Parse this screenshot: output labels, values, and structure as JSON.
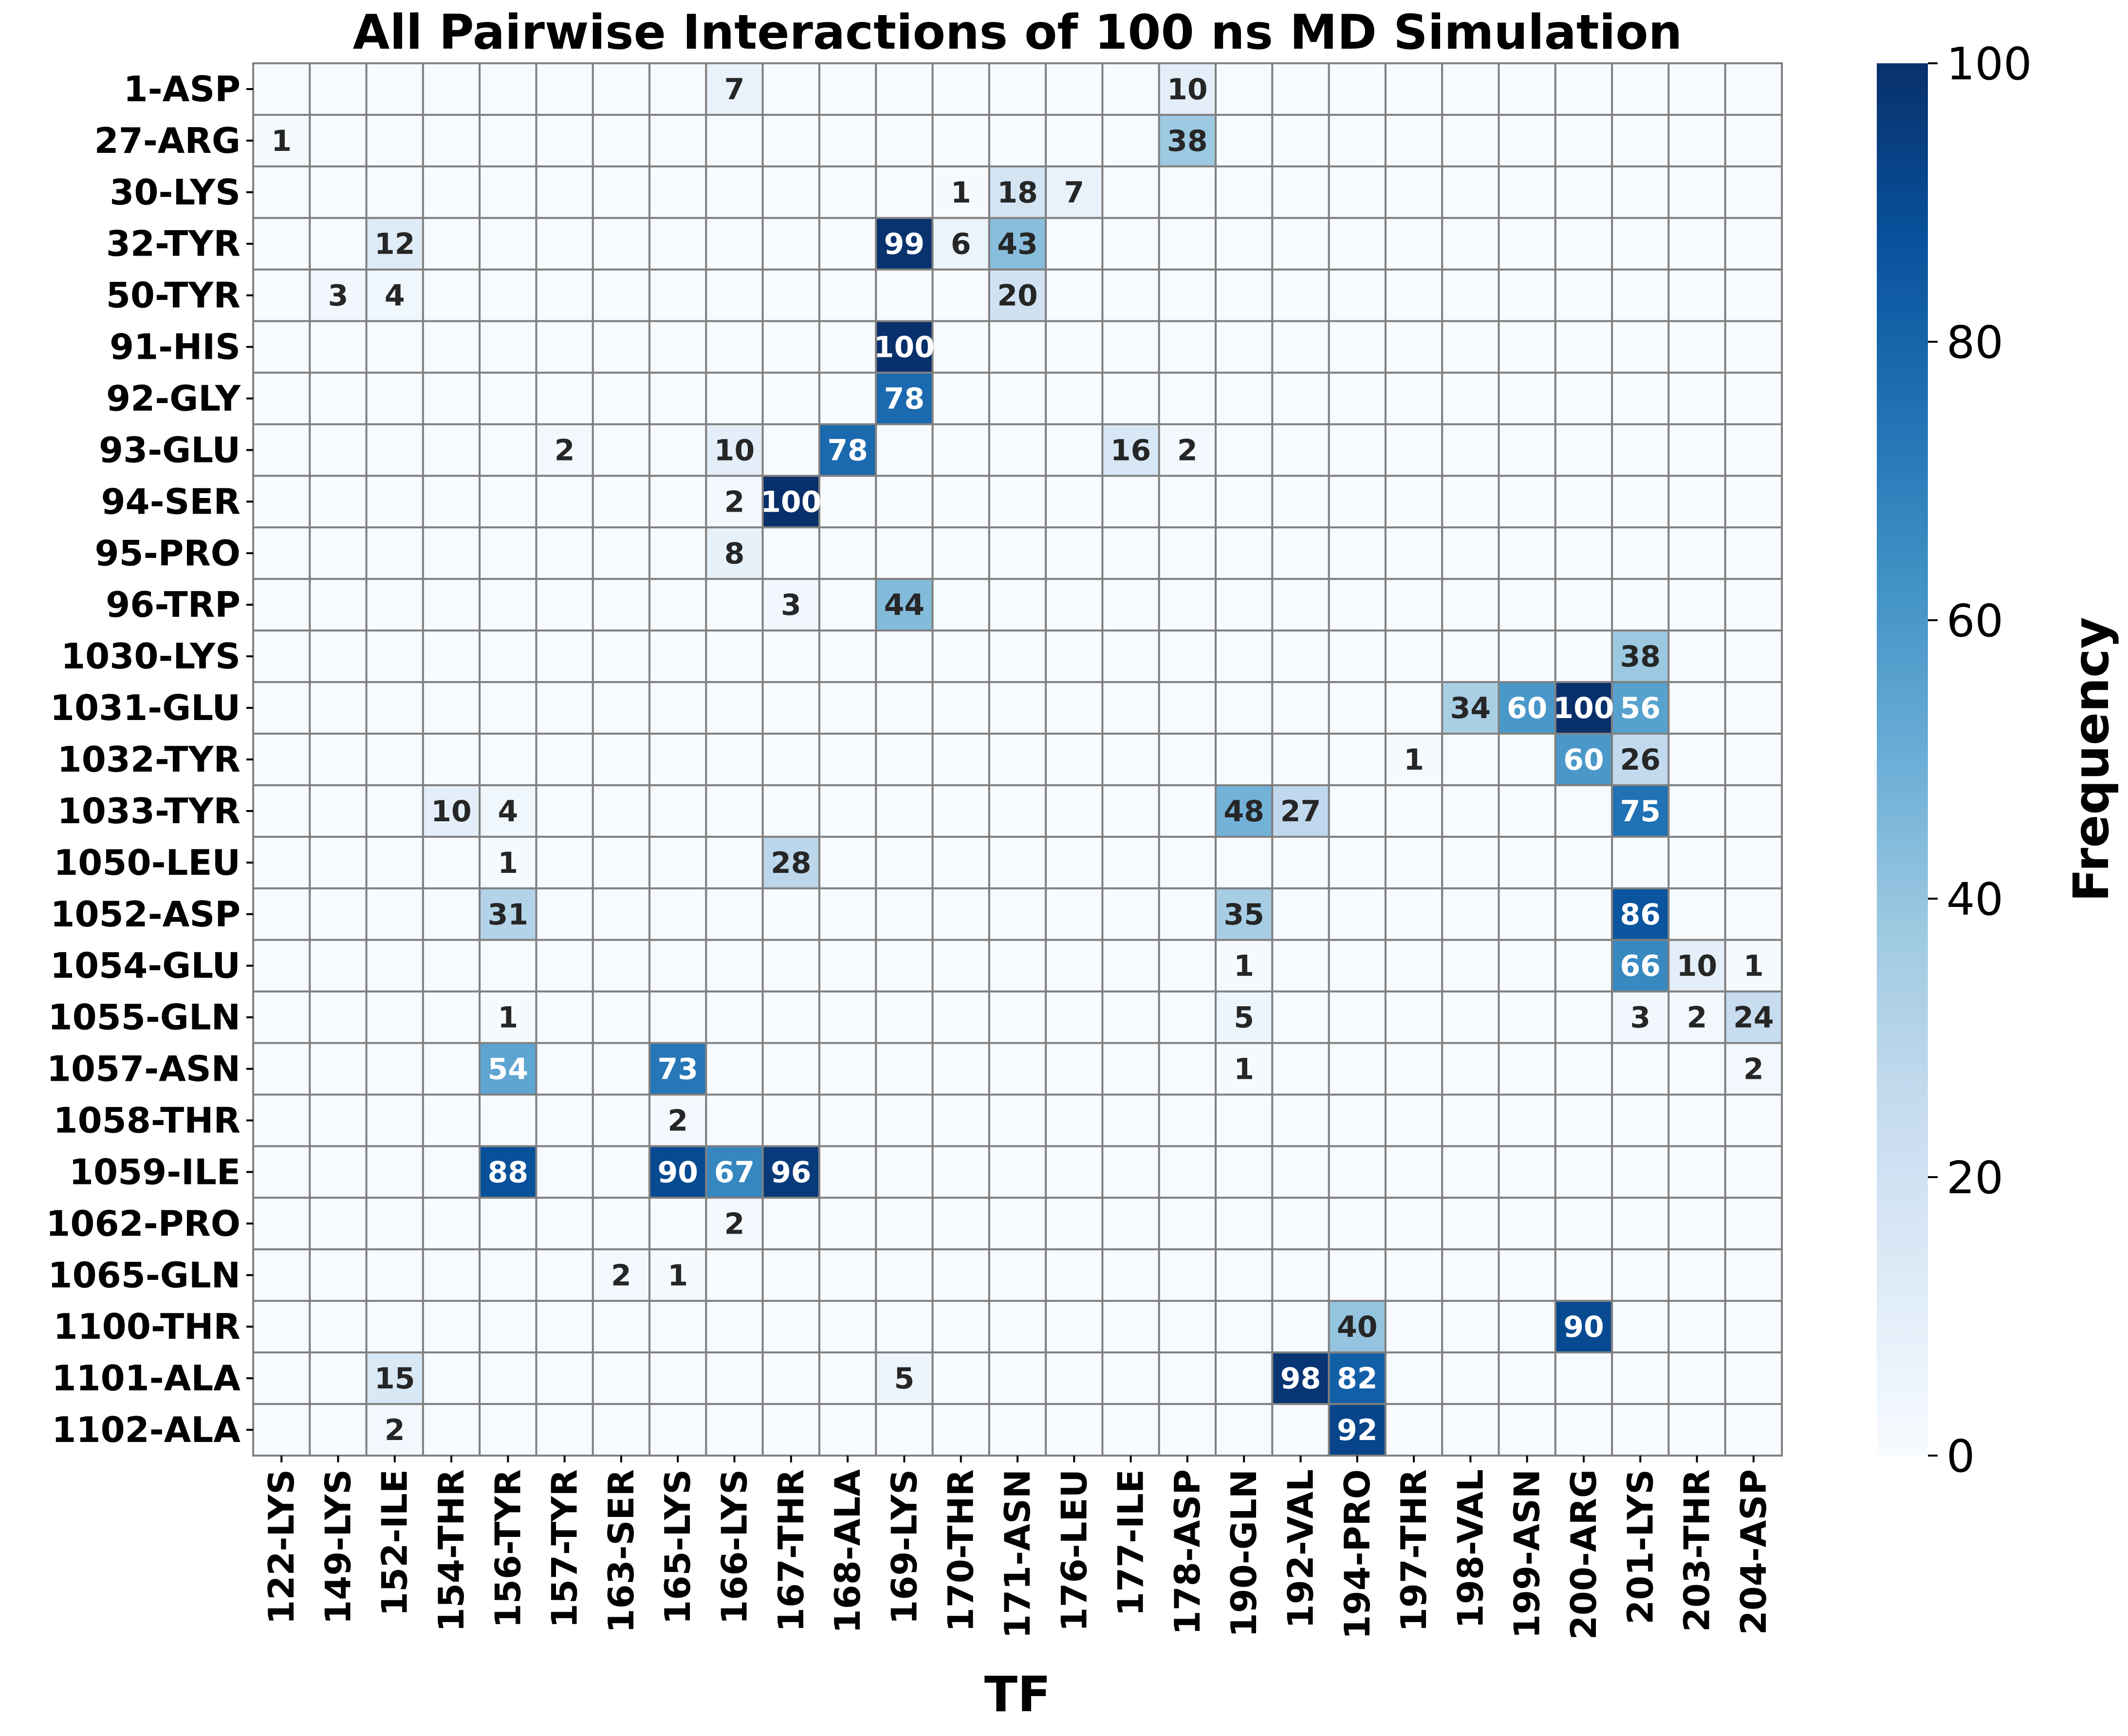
{
  "chart_data": {
    "type": "heatmap",
    "title": "All Pairwise Interactions of 100 ns MD Simulation",
    "xlabel": "TF",
    "ylabel": "",
    "colorbar_label": "Frequency",
    "colormap": "Blues",
    "vmin": 0,
    "vmax": 100,
    "colorbar_ticks": [
      0,
      20,
      40,
      60,
      80,
      100
    ],
    "x_categories": [
      "122-LYS",
      "149-LYS",
      "152-ILE",
      "154-THR",
      "156-TYR",
      "157-TYR",
      "163-SER",
      "165-LYS",
      "166-LYS",
      "167-THR",
      "168-ALA",
      "169-LYS",
      "170-THR",
      "171-ASN",
      "176-LEU",
      "177-ILE",
      "178-ASP",
      "190-GLN",
      "192-VAL",
      "194-PRO",
      "197-THR",
      "198-VAL",
      "199-ASN",
      "200-ARG",
      "201-LYS",
      "203-THR",
      "204-ASP"
    ],
    "y_categories": [
      "1-ASP",
      "27-ARG",
      "30-LYS",
      "32-TYR",
      "50-TYR",
      "91-HIS",
      "92-GLY",
      "93-GLU",
      "94-SER",
      "95-PRO",
      "96-TRP",
      "1030-LYS",
      "1031-GLU",
      "1032-TYR",
      "1033-TYR",
      "1050-LEU",
      "1052-ASP",
      "1054-GLU",
      "1055-GLN",
      "1057-ASN",
      "1058-THR",
      "1059-ILE",
      "1062-PRO",
      "1065-GLN",
      "1100-THR",
      "1101-ALA",
      "1102-ALA"
    ],
    "values": [
      [
        0,
        0,
        0,
        0,
        0,
        0,
        0,
        0,
        7,
        0,
        0,
        0,
        0,
        0,
        0,
        0,
        10,
        0,
        0,
        0,
        0,
        0,
        0,
        0,
        0,
        0,
        0
      ],
      [
        1,
        0,
        0,
        0,
        0,
        0,
        0,
        0,
        0,
        0,
        0,
        0,
        0,
        0,
        0,
        0,
        38,
        0,
        0,
        0,
        0,
        0,
        0,
        0,
        0,
        0,
        0
      ],
      [
        0,
        0,
        0,
        0,
        0,
        0,
        0,
        0,
        0,
        0,
        0,
        0,
        1,
        18,
        7,
        0,
        0,
        0,
        0,
        0,
        0,
        0,
        0,
        0,
        0,
        0,
        0
      ],
      [
        0,
        0,
        12,
        0,
        0,
        0,
        0,
        0,
        0,
        0,
        0,
        99,
        6,
        43,
        0,
        0,
        0,
        0,
        0,
        0,
        0,
        0,
        0,
        0,
        0,
        0,
        0
      ],
      [
        0,
        3,
        4,
        0,
        0,
        0,
        0,
        0,
        0,
        0,
        0,
        0,
        0,
        20,
        0,
        0,
        0,
        0,
        0,
        0,
        0,
        0,
        0,
        0,
        0,
        0,
        0
      ],
      [
        0,
        0,
        0,
        0,
        0,
        0,
        0,
        0,
        0,
        0,
        0,
        100,
        0,
        0,
        0,
        0,
        0,
        0,
        0,
        0,
        0,
        0,
        0,
        0,
        0,
        0,
        0
      ],
      [
        0,
        0,
        0,
        0,
        0,
        0,
        0,
        0,
        0,
        0,
        0,
        78,
        0,
        0,
        0,
        0,
        0,
        0,
        0,
        0,
        0,
        0,
        0,
        0,
        0,
        0,
        0
      ],
      [
        0,
        0,
        0,
        0,
        0,
        2,
        0,
        0,
        10,
        0,
        78,
        0,
        0,
        0,
        0,
        16,
        2,
        0,
        0,
        0,
        0,
        0,
        0,
        0,
        0,
        0,
        0
      ],
      [
        0,
        0,
        0,
        0,
        0,
        0,
        0,
        0,
        2,
        100,
        0,
        0,
        0,
        0,
        0,
        0,
        0,
        0,
        0,
        0,
        0,
        0,
        0,
        0,
        0,
        0,
        0
      ],
      [
        0,
        0,
        0,
        0,
        0,
        0,
        0,
        0,
        8,
        0,
        0,
        0,
        0,
        0,
        0,
        0,
        0,
        0,
        0,
        0,
        0,
        0,
        0,
        0,
        0,
        0,
        0
      ],
      [
        0,
        0,
        0,
        0,
        0,
        0,
        0,
        0,
        0,
        3,
        0,
        44,
        0,
        0,
        0,
        0,
        0,
        0,
        0,
        0,
        0,
        0,
        0,
        0,
        0,
        0,
        0
      ],
      [
        0,
        0,
        0,
        0,
        0,
        0,
        0,
        0,
        0,
        0,
        0,
        0,
        0,
        0,
        0,
        0,
        0,
        0,
        0,
        0,
        0,
        0,
        0,
        0,
        38,
        0,
        0
      ],
      [
        0,
        0,
        0,
        0,
        0,
        0,
        0,
        0,
        0,
        0,
        0,
        0,
        0,
        0,
        0,
        0,
        0,
        0,
        0,
        0,
        0,
        34,
        60,
        100,
        56,
        0,
        0
      ],
      [
        0,
        0,
        0,
        0,
        0,
        0,
        0,
        0,
        0,
        0,
        0,
        0,
        0,
        0,
        0,
        0,
        0,
        0,
        0,
        0,
        1,
        0,
        0,
        60,
        26,
        0,
        0
      ],
      [
        0,
        0,
        0,
        10,
        4,
        0,
        0,
        0,
        0,
        0,
        0,
        0,
        0,
        0,
        0,
        0,
        0,
        48,
        27,
        0,
        0,
        0,
        0,
        0,
        75,
        0,
        0
      ],
      [
        0,
        0,
        0,
        0,
        1,
        0,
        0,
        0,
        0,
        28,
        0,
        0,
        0,
        0,
        0,
        0,
        0,
        0,
        0,
        0,
        0,
        0,
        0,
        0,
        0,
        0,
        0
      ],
      [
        0,
        0,
        0,
        0,
        31,
        0,
        0,
        0,
        0,
        0,
        0,
        0,
        0,
        0,
        0,
        0,
        0,
        35,
        0,
        0,
        0,
        0,
        0,
        0,
        86,
        0,
        0
      ],
      [
        0,
        0,
        0,
        0,
        0,
        0,
        0,
        0,
        0,
        0,
        0,
        0,
        0,
        0,
        0,
        0,
        0,
        1,
        0,
        0,
        0,
        0,
        0,
        0,
        66,
        10,
        1
      ],
      [
        0,
        0,
        0,
        0,
        1,
        0,
        0,
        0,
        0,
        0,
        0,
        0,
        0,
        0,
        0,
        0,
        0,
        5,
        0,
        0,
        0,
        0,
        0,
        0,
        3,
        2,
        24
      ],
      [
        0,
        0,
        0,
        0,
        54,
        0,
        0,
        73,
        0,
        0,
        0,
        0,
        0,
        0,
        0,
        0,
        0,
        1,
        0,
        0,
        0,
        0,
        0,
        0,
        0,
        0,
        2
      ],
      [
        0,
        0,
        0,
        0,
        0,
        0,
        0,
        2,
        0,
        0,
        0,
        0,
        0,
        0,
        0,
        0,
        0,
        0,
        0,
        0,
        0,
        0,
        0,
        0,
        0,
        0,
        0
      ],
      [
        0,
        0,
        0,
        0,
        88,
        0,
        0,
        90,
        67,
        96,
        0,
        0,
        0,
        0,
        0,
        0,
        0,
        0,
        0,
        0,
        0,
        0,
        0,
        0,
        0,
        0,
        0
      ],
      [
        0,
        0,
        0,
        0,
        0,
        0,
        0,
        0,
        2,
        0,
        0,
        0,
        0,
        0,
        0,
        0,
        0,
        0,
        0,
        0,
        0,
        0,
        0,
        0,
        0,
        0,
        0
      ],
      [
        0,
        0,
        0,
        0,
        0,
        0,
        2,
        1,
        0,
        0,
        0,
        0,
        0,
        0,
        0,
        0,
        0,
        0,
        0,
        0,
        0,
        0,
        0,
        0,
        0,
        0,
        0
      ],
      [
        0,
        0,
        0,
        0,
        0,
        0,
        0,
        0,
        0,
        0,
        0,
        0,
        0,
        0,
        0,
        0,
        0,
        0,
        0,
        40,
        0,
        0,
        0,
        90,
        0,
        0,
        0
      ],
      [
        0,
        0,
        15,
        0,
        0,
        0,
        0,
        0,
        0,
        0,
        0,
        5,
        0,
        0,
        0,
        0,
        0,
        0,
        98,
        82,
        0,
        0,
        0,
        0,
        0,
        0,
        0
      ],
      [
        0,
        0,
        2,
        0,
        0,
        0,
        0,
        0,
        0,
        0,
        0,
        0,
        0,
        0,
        0,
        0,
        0,
        0,
        0,
        92,
        0,
        0,
        0,
        0,
        0,
        0,
        0
      ]
    ]
  }
}
